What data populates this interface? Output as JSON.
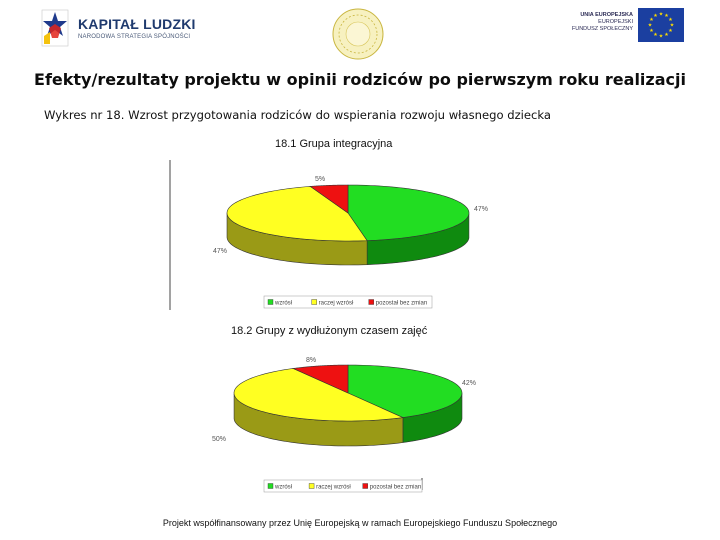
{
  "header": {
    "logo_left": {
      "title": "KAPITAŁ LUDZKI",
      "subtitle": "NARODOWA STRATEGIA SPÓJNOŚCI"
    },
    "logo_right": {
      "line1": "UNIA EUROPEJSKA",
      "line2": "EUROPEJSKI",
      "line3": "FUNDUSZ SPOŁECZNY"
    }
  },
  "main_title": "Efekty/rezultaty projektu w opinii rodziców po pierwszym roku realizacji",
  "subtitle": "Wykres nr 18. Wzrost przygotowania rodziców do wspierania rozwoju własnego dziecka",
  "colors": {
    "green": "#22dd22",
    "green_side": "#0f8a0f",
    "yellow": "#ffff22",
    "yellow_side": "#9a9a16",
    "red": "#ee1111",
    "red_side": "#8a0a0a"
  },
  "chart_data": [
    {
      "type": "pie",
      "title": "18.1 Grupa integracyjna",
      "categories": [
        "wzrósł",
        "raczej wzrósł",
        "pozostał bez zmian"
      ],
      "values": [
        47,
        47,
        5
      ],
      "data_labels": [
        "47%",
        "47%",
        "5%"
      ],
      "legend": "bottom",
      "style": "3d"
    },
    {
      "type": "pie",
      "title": "18.2 Grupy z wydłużonym czasem zajęć",
      "categories": [
        "wzrósł",
        "raczej wzrósł",
        "pozostał bez zmian"
      ],
      "values": [
        42,
        50,
        8
      ],
      "data_labels": [
        "42%",
        "50%",
        "8%"
      ],
      "legend": "bottom",
      "style": "3d"
    }
  ],
  "footer": "Projekt współfinansowany przez Unię Europejską w ramach Europejskiego Funduszu Społecznego"
}
